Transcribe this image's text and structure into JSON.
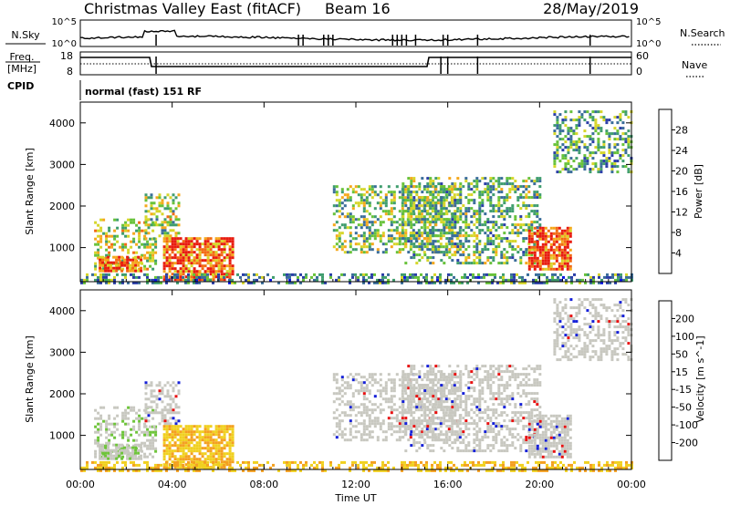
{
  "header": {
    "station": "Christmas Valley East (fitACF)",
    "beam": "Beam 16",
    "date": "28/May/2019"
  },
  "noise_panel": {
    "left_label": "N.Sky",
    "right_label": "N.Search",
    "left_ticks": [
      "10^5",
      "10^0"
    ],
    "right_ticks": [
      "10^5",
      "10^0"
    ]
  },
  "freq_panel": {
    "left_label_1": "Freq.",
    "left_label_2": "[MHz]",
    "right_label": "Nave",
    "left_ticks": [
      "18",
      "8"
    ],
    "right_ticks": [
      "60",
      "0"
    ]
  },
  "cpid": {
    "label": "CPID",
    "value": "normal (fast) 151 RF"
  },
  "colors": {
    "power": [
      "#0a16e6",
      "#2b3ea8",
      "#3a6d9a",
      "#3f9d6e",
      "#68c23a",
      "#d6d62a",
      "#f5a81c",
      "#f26a14",
      "#e81c10"
    ],
    "velocity_pos": [
      "#1520d8",
      "#2c4da0",
      "#2e7d3e",
      "#6ec43a"
    ],
    "velocity_mid": "#c8c8c0",
    "velocity_neg": [
      "#f0d020",
      "#f4a020",
      "#f06a10",
      "#e81010"
    ]
  },
  "chart_data": [
    {
      "type": "heatmap",
      "name": "power",
      "ylabel": "Slant Range [km]",
      "xlabel": "",
      "x_ticks": [
        "00:00",
        "04:00",
        "08:00",
        "12:00",
        "16:00",
        "20:00",
        "00:00"
      ],
      "x_range_hours": [
        0,
        24
      ],
      "y_ticks": [
        1000,
        2000,
        3000,
        4000
      ],
      "y_range_km": [
        180,
        4500
      ],
      "colorbar_label": "Power [dB]",
      "colorbar_ticks": [
        "28",
        "24",
        "20",
        "16",
        "12",
        "8",
        "4"
      ],
      "regions": [
        {
          "t0": 0.6,
          "t1": 3.3,
          "r0": 500,
          "r1": 1700,
          "level": 0.6
        },
        {
          "t0": 2.8,
          "t1": 4.3,
          "r0": 1200,
          "r1": 2300,
          "level": 0.55
        },
        {
          "t0": 3.6,
          "t1": 6.6,
          "r0": 250,
          "r1": 1250,
          "level": 0.85
        },
        {
          "t0": 0.8,
          "t1": 2.6,
          "r0": 450,
          "r1": 800,
          "level": 0.8
        },
        {
          "t0": 11.0,
          "t1": 16.5,
          "r0": 900,
          "r1": 2500,
          "level": 0.5
        },
        {
          "t0": 14.0,
          "t1": 20.0,
          "r0": 600,
          "r1": 2700,
          "level": 0.45
        },
        {
          "t0": 19.5,
          "t1": 21.3,
          "r0": 500,
          "r1": 1500,
          "level": 0.9
        },
        {
          "t0": 20.6,
          "t1": 24.0,
          "r0": 2800,
          "r1": 4300,
          "level": 0.4
        },
        {
          "t0": 0.0,
          "t1": 24.0,
          "r0": 180,
          "r1": 380,
          "level": 0.35
        }
      ]
    },
    {
      "type": "heatmap",
      "name": "velocity",
      "ylabel": "Slant Range [km]",
      "xlabel": "Time UT",
      "x_ticks": [
        "00:00",
        "04:00",
        "08:00",
        "12:00",
        "16:00",
        "20:00",
        "00:00"
      ],
      "x_range_hours": [
        0,
        24
      ],
      "y_ticks": [
        1000,
        2000,
        3000,
        4000
      ],
      "y_range_km": [
        180,
        4500
      ],
      "colorbar_label": "Velocity [m s^-1]",
      "colorbar_ticks": [
        "200",
        "100",
        "50",
        "15",
        "-15",
        "-50",
        "-100",
        "-200"
      ]
    }
  ]
}
